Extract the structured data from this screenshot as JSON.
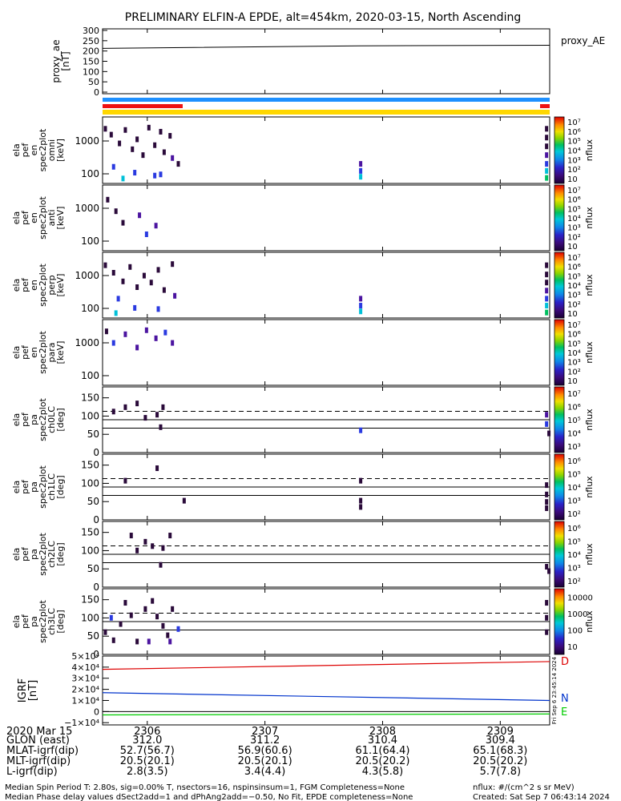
{
  "title": "PRELIMINARY ELFIN-A EPDE, alt=454km, 2020-03-15, North Ascending",
  "proxy_panel": {
    "ylabel": [
      "proxy_ae",
      "[nT]"
    ],
    "right_label": "proxy_AE",
    "yticks": [
      "0",
      "50",
      "100",
      "150",
      "200",
      "250",
      "300"
    ]
  },
  "spec_panels": [
    {
      "ylabel": [
        "ela",
        "pef",
        "en",
        "spec2plot",
        "omni",
        "[keV]"
      ]
    },
    {
      "ylabel": [
        "ela",
        "pef",
        "en",
        "spec2plot",
        "anti",
        "[keV]"
      ]
    },
    {
      "ylabel": [
        "ela",
        "pef",
        "en",
        "spec2plot",
        "perp",
        "[keV]"
      ]
    },
    {
      "ylabel": [
        "ela",
        "pef",
        "en",
        "spec2plot",
        "para",
        "[keV]"
      ]
    }
  ],
  "pa_panels": [
    {
      "ylabel": [
        "ela",
        "pef",
        "pa",
        "spec2plot",
        "ch0LC",
        "[deg]"
      ]
    },
    {
      "ylabel": [
        "ela",
        "pef",
        "pa",
        "spec2plot",
        "ch1LC",
        "[deg]"
      ]
    },
    {
      "ylabel": [
        "ela",
        "pef",
        "pa",
        "spec2plot",
        "ch2LC",
        "[deg]"
      ]
    },
    {
      "ylabel": [
        "ela",
        "pef",
        "pa",
        "spec2plot",
        "ch3LC",
        "[deg]"
      ]
    }
  ],
  "energy_yticks": [
    "100",
    "1000"
  ],
  "pa_yticks": [
    "0",
    "50",
    "100",
    "150"
  ],
  "colorbar_label": "nflux",
  "colorbar_ticks_spec": [
    "10",
    "10²",
    "10³",
    "10⁴",
    "10⁵",
    "10⁶",
    "10⁷"
  ],
  "colorbar_ticks_pa": [
    [
      "10³",
      "10⁴",
      "10⁵",
      "10⁶",
      "10⁷"
    ],
    [
      "10²",
      "10³",
      "10⁴",
      "10⁵",
      "10⁶"
    ],
    [
      "10²",
      "10³",
      "10⁴",
      "10⁵",
      "10⁶"
    ],
    [
      "10",
      "100",
      "1000",
      "10000"
    ]
  ],
  "bfield_panel": {
    "ylabel": [
      "IGRF",
      "[nT]"
    ],
    "yticks": [
      "−1×10⁴",
      "0",
      "1×10⁴",
      "2×10⁴",
      "3×10⁴",
      "4×10⁴",
      "5×10⁴"
    ],
    "components": [
      {
        "label": "D",
        "color": "#dd0000"
      },
      {
        "label": "N",
        "color": "#0033cc"
      },
      {
        "label": "E",
        "color": "#00cc00"
      }
    ],
    "side_text": "Fri Sep  6 23:45:14 2024"
  },
  "bottom_axis": {
    "date": "2020 Mar 15",
    "row_labels": [
      "GLON (east)",
      "MLAT-igrf(dip)",
      "MLT-igrf(dip)",
      "L-igrf(dip)"
    ],
    "columns": [
      {
        "time": "2306",
        "values": [
          "312.0",
          "52.7(56.7)",
          "20.5(20.1)",
          "2.8(3.5)"
        ]
      },
      {
        "time": "2307",
        "values": [
          "311.2",
          "56.9(60.6)",
          "20.5(20.1)",
          "3.4(4.4)"
        ]
      },
      {
        "time": "2308",
        "values": [
          "310.4",
          "61.1(64.4)",
          "20.5(20.2)",
          "4.3(5.8)"
        ]
      },
      {
        "time": "2309",
        "values": [
          "309.4",
          "65.1(68.3)",
          "20.5(20.2)",
          "5.7(7.8)"
        ]
      }
    ]
  },
  "footer": {
    "left1": "Median Spin Period T: 2.80s, sig=0.00% T, nsectors=16, nspinsinsum=1, FGM Completeness=None",
    "left2": "Median Phase delay values dSect2add=1 and dPhAng2add=−0.50, No Fit, EPDE completeness=None",
    "right1": "nflux: #/(cm^2 s sr MeV)",
    "right2": "Created: Sat Sep  7 06:43:14 2024"
  },
  "chart_data": {
    "type": "heatmap",
    "time_axis_minutes": {
      "start": 2305.62,
      "end": 2309.42
    },
    "proxy_ae": {
      "ylim": [
        0,
        300
      ],
      "x": [
        2305.62,
        2307.8,
        2309.42
      ],
      "y": [
        213,
        225,
        228
      ]
    },
    "bfield": {
      "ylim": [
        -12000,
        50000
      ],
      "series": [
        {
          "name": "D",
          "x": [
            2305.62,
            2309.42
          ],
          "y": [
            38000,
            45000
          ]
        },
        {
          "name": "N",
          "x": [
            2305.62,
            2309.42
          ],
          "y": [
            17000,
            10000
          ]
        },
        {
          "name": "E",
          "x": [
            2305.62,
            2309.42
          ],
          "y": [
            -3000,
            -2200
          ]
        }
      ]
    },
    "pa_reference_lines": {
      "dashed": 113,
      "solid": [
        90,
        67
      ]
    }
  }
}
